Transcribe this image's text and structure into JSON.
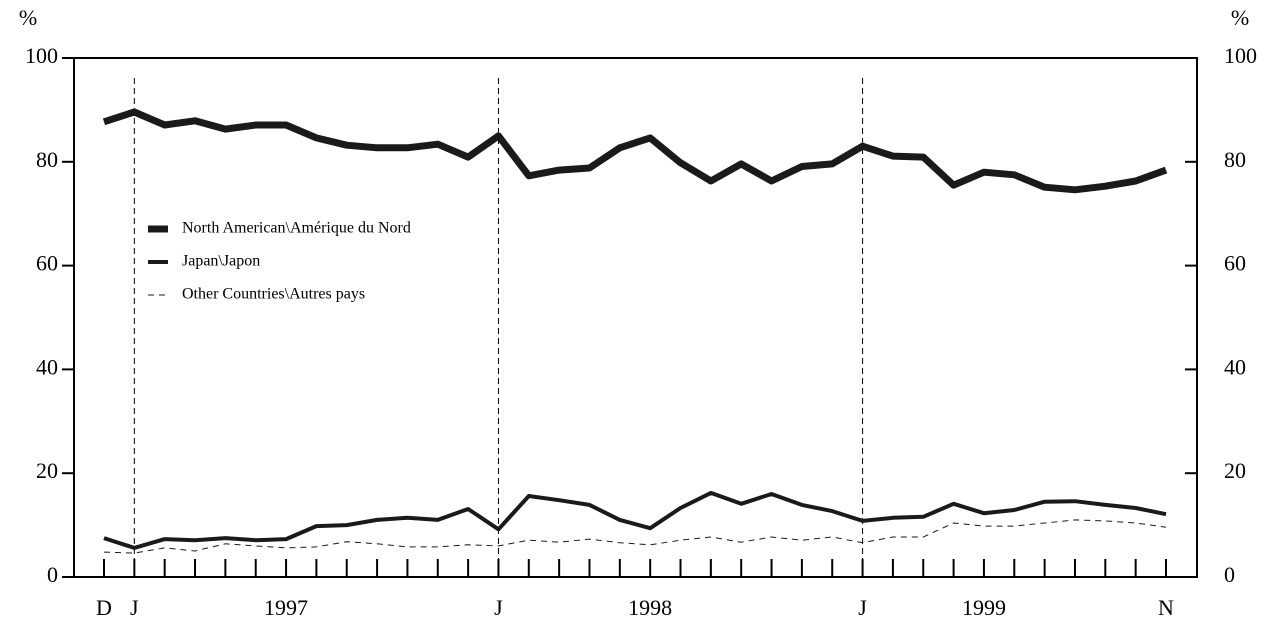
{
  "chart_data": {
    "type": "line",
    "y_label": "%",
    "y2_label": "%",
    "categories": [
      "D",
      "J",
      null,
      null,
      null,
      null,
      "1997",
      null,
      null,
      null,
      null,
      null,
      null,
      "J",
      null,
      null,
      null,
      null,
      "1998",
      null,
      null,
      null,
      null,
      null,
      null,
      "J",
      null,
      null,
      null,
      "1999",
      null,
      null,
      null,
      null,
      null,
      "N"
    ],
    "series": [
      {
        "name": "North American\\Amérique du Nord",
        "color": "#1a1a1a",
        "style": "solid",
        "width": 7,
        "values": [
          87.7,
          89.6,
          87.1,
          87.9,
          86.3,
          87.1,
          87.1,
          84.6,
          83.2,
          82.7,
          82.7,
          83.4,
          80.9,
          85.0,
          77.3,
          78.4,
          78.8,
          82.7,
          84.6,
          79.8,
          76.3,
          79.6,
          76.3,
          79.1,
          79.6,
          83.0,
          81.1,
          80.9,
          75.5,
          78.0,
          77.5,
          75.1,
          74.6,
          75.3,
          76.3,
          78.4
        ]
      },
      {
        "name": "Japan\\Japon",
        "color": "#1a1a1a",
        "style": "solid",
        "width": 4,
        "values": [
          7.5,
          5.6,
          7.3,
          7.1,
          7.5,
          7.1,
          7.3,
          9.8,
          10.0,
          11.0,
          11.4,
          11.0,
          13.1,
          9.2,
          15.6,
          14.8,
          13.9,
          11.0,
          9.4,
          13.3,
          16.2,
          14.1,
          16.0,
          13.9,
          12.7,
          10.8,
          11.4,
          11.6,
          14.1,
          12.3,
          12.9,
          14.5,
          14.6,
          13.9,
          13.3,
          12.1
        ]
      },
      {
        "name": "Other Countries\\Autres pays",
        "color": "#1a1a1a",
        "style": "dashed",
        "width": 1,
        "values": [
          4.8,
          4.6,
          5.6,
          5.0,
          6.4,
          6.0,
          5.6,
          5.8,
          6.8,
          6.4,
          5.8,
          5.8,
          6.2,
          6.0,
          7.1,
          6.7,
          7.3,
          6.6,
          6.2,
          7.1,
          7.7,
          6.7,
          7.7,
          7.1,
          7.7,
          6.6,
          7.7,
          7.7,
          10.4,
          9.8,
          9.8,
          10.4,
          11.0,
          10.8,
          10.4,
          9.6
        ]
      }
    ],
    "ylim": [
      0,
      100
    ],
    "yticks": [
      0,
      20,
      40,
      60,
      80,
      100
    ],
    "y2lim": [
      0,
      100
    ],
    "y2ticks": [
      0,
      20,
      40,
      60,
      80,
      100
    ],
    "legend": "upper left",
    "grid": false
  }
}
